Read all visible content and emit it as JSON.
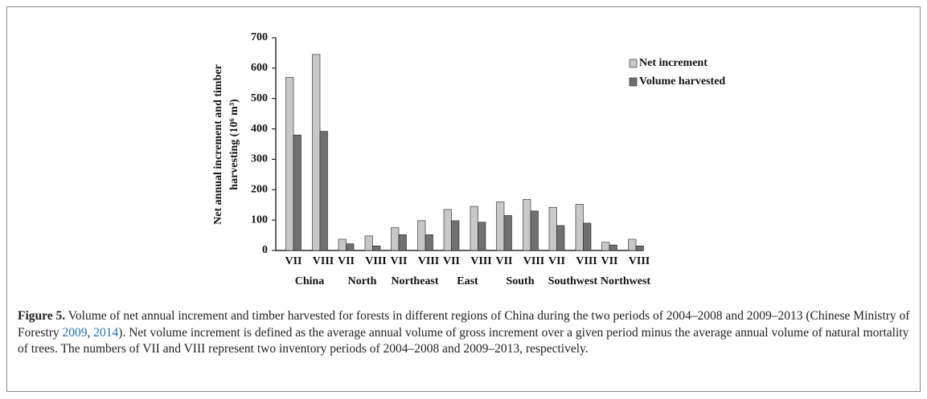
{
  "chart_data": {
    "type": "bar",
    "y_label": [
      "Net annual increment and timber",
      "harvesting (10⁶ m³)"
    ],
    "groups": [
      "China",
      "North",
      "Northeast",
      "East",
      "South",
      "Southwest",
      "Northwest"
    ],
    "categories": [
      "VII",
      "VIII",
      "VII",
      "VIII",
      "VII",
      "VIII",
      "VII",
      "VIII",
      "VII",
      "VIII",
      "VII",
      "VIII",
      "VII",
      "VIII"
    ],
    "series": [
      {
        "name": "Net increment",
        "color": "#c8c8c8",
        "values": [
          570,
          645,
          37,
          48,
          75,
          98,
          135,
          145,
          160,
          168,
          142,
          152,
          27,
          37
        ]
      },
      {
        "name": "Volume harvested",
        "color": "#707070",
        "values": [
          380,
          392,
          22,
          15,
          52,
          52,
          98,
          93,
          115,
          130,
          82,
          90,
          18,
          15
        ]
      }
    ],
    "ylim": [
      0,
      700
    ],
    "yticks": [
      0,
      100,
      200,
      300,
      400,
      500,
      600,
      700
    ],
    "legend": "upper right"
  },
  "caption": {
    "label": "Figure 5.",
    "text1": " Volume of net annual increment and timber harvested for forests in different regions of China during the two periods of 2004–2008 and 2009–2013 (Chinese Ministry of Forestry ",
    "ref1": "2009",
    "text2": ", ",
    "ref2": "2014",
    "text3": "). Net volume increment is defined as the average annual volume of gross increment over a given period minus the average annual volume of natural mortality of trees. The numbers of VII and VIII represent two inventory periods of 2004–2008 and 2009–2013, respectively."
  }
}
